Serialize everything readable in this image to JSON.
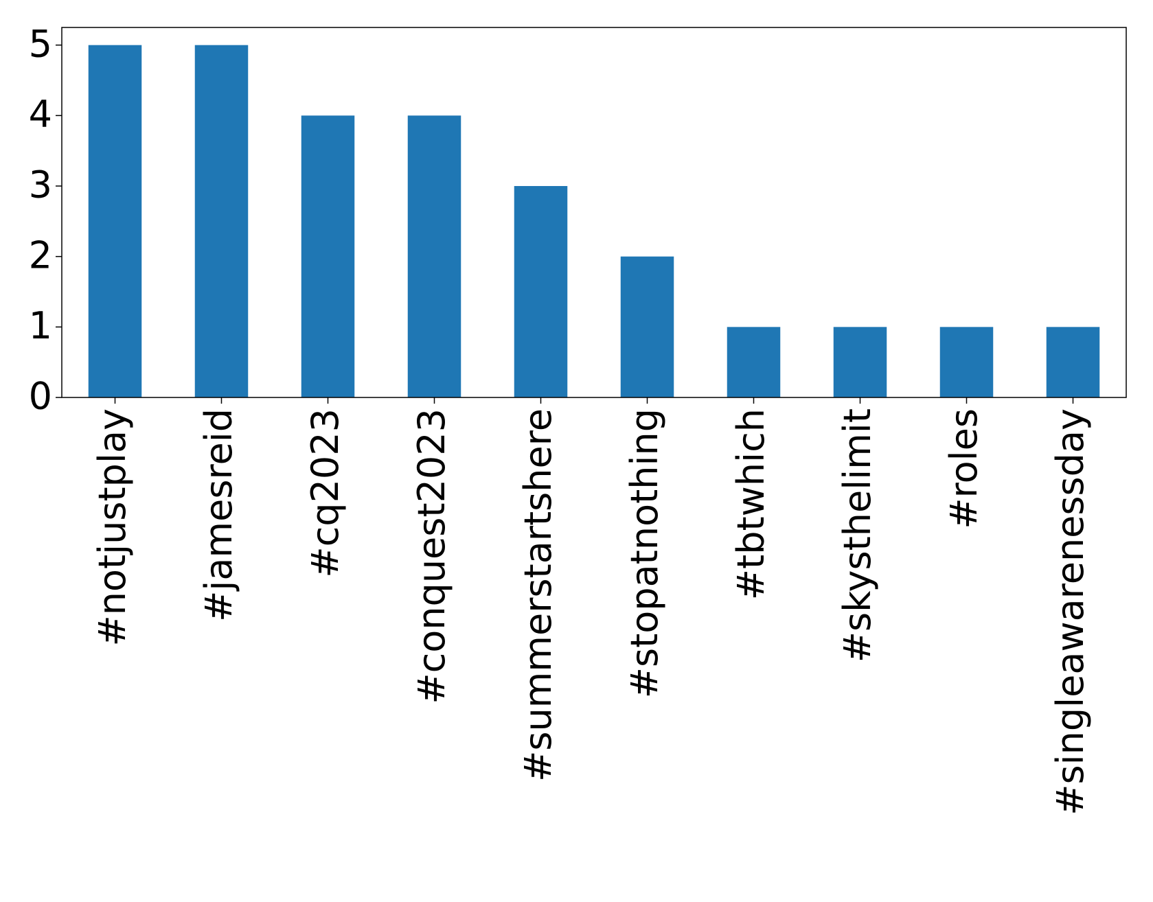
{
  "chart_data": {
    "type": "bar",
    "categories": [
      "#notjustplay",
      "#jamesreid",
      "#cq2023",
      "#conquest2023",
      "#summerstartshere",
      "#stopatnothing",
      "#tbtwhich",
      "#skysthelimit",
      "#roles",
      "#singleawarenessday"
    ],
    "values": [
      5,
      5,
      4,
      4,
      3,
      2,
      1,
      1,
      1,
      1
    ],
    "color": "#1f77b4",
    "ylim": [
      0,
      5.25
    ],
    "yticks": [
      0,
      1,
      2,
      3,
      4,
      5
    ],
    "grid": false
  }
}
